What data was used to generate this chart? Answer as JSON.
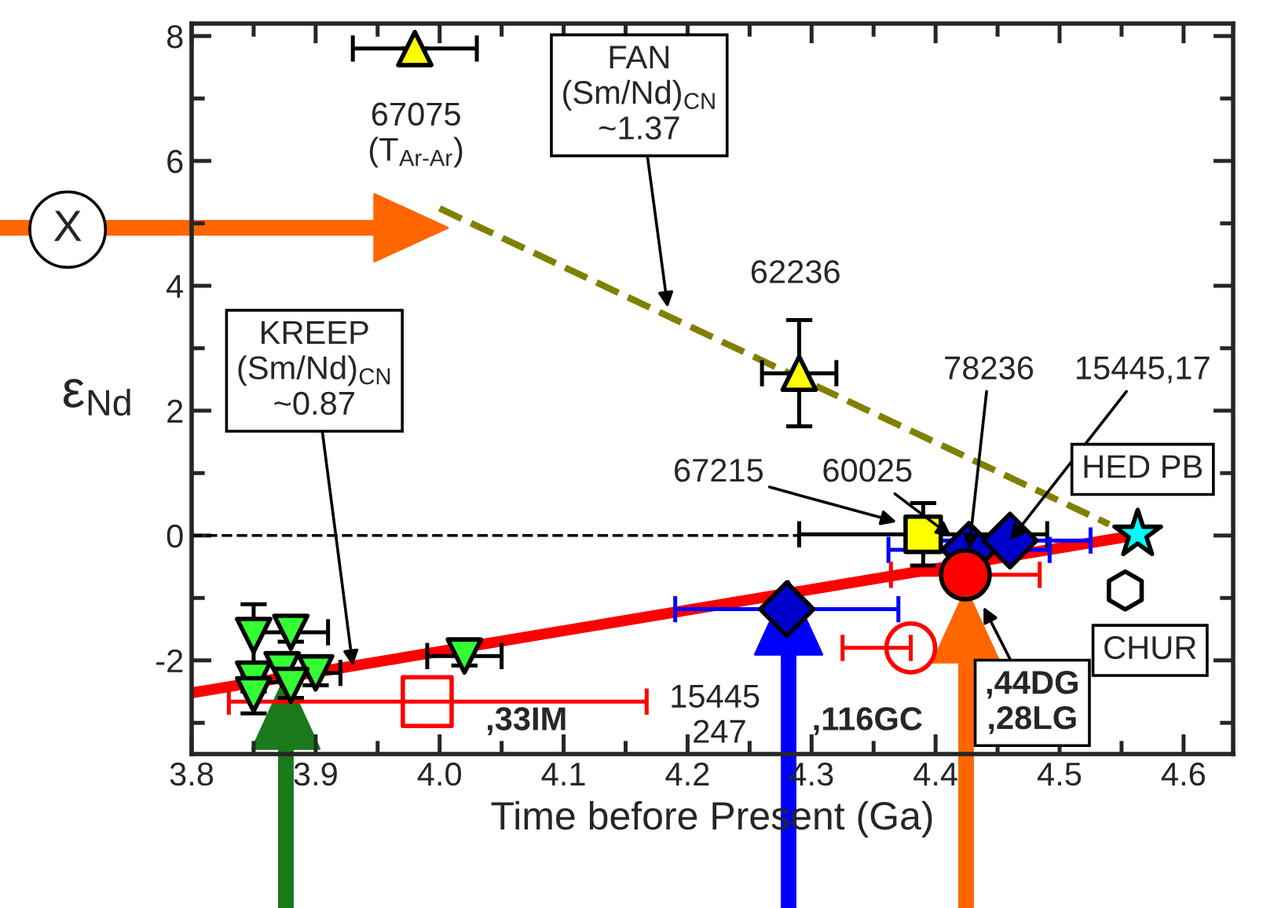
{
  "chart_data": {
    "type": "scatter",
    "xlabel": "Time before Present (Ga)",
    "ylabel": "ε$_{Nd}$",
    "xlim": [
      3.8,
      4.64
    ],
    "ylim": [
      -3.5,
      8.2
    ],
    "xticks": [
      {
        "value": 3.8,
        "label": "3.8"
      },
      {
        "value": 3.9,
        "label": "3.9"
      },
      {
        "value": 4.0,
        "label": "4.0"
      },
      {
        "value": 4.1,
        "label": "4.1"
      },
      {
        "value": 4.2,
        "label": "4.2"
      },
      {
        "value": 4.3,
        "label": "4.3"
      },
      {
        "value": 4.4,
        "label": "4.4"
      },
      {
        "value": 4.5,
        "label": "4.5"
      },
      {
        "value": 4.6,
        "label": "4.6"
      }
    ],
    "yticks": [
      {
        "value": -2,
        "label": "-2"
      },
      0,
      2,
      4,
      6,
      8
    ],
    "grid": false,
    "legend": false,
    "series": [
      {
        "marker": "triangle_down",
        "color": "#33ff33",
        "x": [
          3.85,
          3.88,
          3.873,
          3.9,
          3.85,
          3.85,
          3.88,
          4.02
        ],
        "values": [
          -1.6,
          -1.55,
          -2.15,
          -2.2,
          -2.3,
          -2.55,
          -2.4,
          -1.93
        ],
        "errors": [
          0.5,
          0.15,
          0.2,
          0.2,
          0.2,
          0.3,
          0.2,
          0.15
        ],
        "xerrors": [
          null,
          0.03,
          null,
          0.02,
          null,
          null,
          null,
          0.03
        ]
      },
      {
        "marker": "triangle",
        "color": "#ffff00",
        "x": [
          3.98,
          4.29
        ],
        "values": [
          7.8,
          2.6
        ],
        "errors": [
          null,
          0.85
        ],
        "xerrors": [
          0.05,
          0.03
        ]
      },
      {
        "marker": "square",
        "color": "#ffff00",
        "x": [
          4.39
        ],
        "values": [
          0.02
        ],
        "errors": [
          0.5
        ],
        "xerrors": [
          0.1
        ]
      },
      {
        "marker": "diamond",
        "color": "#0000cc",
        "x": [
          4.28,
          4.427,
          4.46
        ],
        "values": [
          -1.18,
          -0.23,
          -0.08
        ],
        "xerrors": [
          0.09,
          0.065,
          0.065
        ]
      },
      {
        "marker": "circle",
        "color": "#ff0000",
        "x": [
          4.424
        ],
        "values": [
          -0.63
        ],
        "xerrors": [
          0.06
        ]
      },
      {
        "marker": "circle",
        "color": "#ff0000",
        "x": [
          4.38
        ],
        "values": [
          -1.8
        ],
        "xerrors": [
          [
            4.325,
            4.38
          ]
        ]
      },
      {
        "marker": "square",
        "color": "#ff0000",
        "x": [
          3.99
        ],
        "values": [
          -2.66
        ],
        "xerrors": [
          [
            3.83,
            4.167
          ]
        ]
      },
      {
        "marker": "star",
        "color": "#00ffff",
        "x": [
          4.563
        ],
        "values": [
          0.02
        ]
      },
      {
        "color": "#000000",
        "x": [
          4.553
        ],
        "values": [
          -0.88
        ]
      },
      {
        "type": "line",
        "color": "#ff0000",
        "line_style": "solid",
        "x": [
          3.8,
          4.56
        ],
        "values": [
          -2.52,
          0.0
        ]
      },
      {
        "type": "line",
        "color": "#808000",
        "line_style": "dashed",
        "x": [
          4.0,
          4.54
        ],
        "values": [
          5.24,
          0.18
        ]
      },
      {
        "type": "line",
        "color": "#000000",
        "line_style": "dashed",
        "x": [
          3.8,
          4.29
        ],
        "values": [
          0.0,
          0.0
        ]
      }
    ],
    "annotations": [
      {
        "text": "67075\n(T$_{Ar‐Ar}$)",
        "x": 3.98,
        "y": 7.8
      },
      {
        "text": "FAN\n(Sm/Nd)$_{CN}$\n~1.37",
        "x": 4.184,
        "y": 3.65
      },
      {
        "text": "62236",
        "x": 4.29,
        "y": 2.6
      },
      {
        "text": "KREEP\n(Sm/Nd)$_{CN}$\n~0.87",
        "x": 3.93,
        "y": -2.09
      },
      {
        "text": "67215",
        "x": 4.372,
        "y": 0.2
      },
      {
        "text": "60025",
        "x": 4.427,
        "y": -0.23
      },
      {
        "text": "78236",
        "x": 4.427,
        "y": -0.23
      },
      {
        "text": "15445,17",
        "x": 4.46,
        "y": -0.08
      },
      {
        "text": "HED PB",
        "x": 4.563,
        "y": 0.02
      },
      {
        "text": "CHUR",
        "x": 4.553,
        "y": -0.88
      },
      {
        "text": ",44DG\n,28LG",
        "x": 4.437,
        "y": -1.08
      },
      {
        "text": "15445\n,247",
        "x": 4.28,
        "y": -1.18
      },
      ",116GC",
      {
        "text": ",33IM",
        "x": 3.99,
        "y": -2.66
      },
      "X"
    ]
  }
}
